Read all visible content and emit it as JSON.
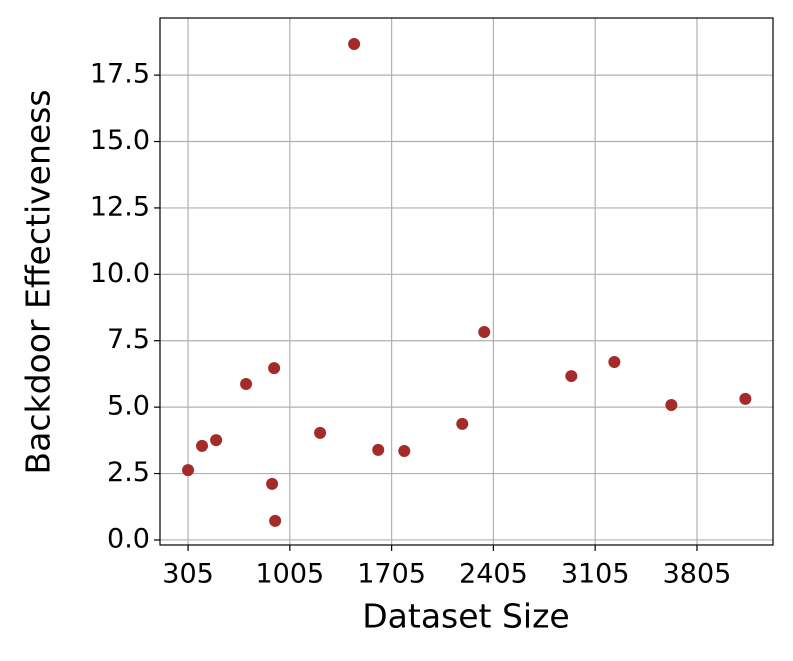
{
  "chart_data": {
    "type": "scatter",
    "x_label": "Dataset Size",
    "y_label": "Backdoor Effectiveness",
    "x": [
      305,
      401,
      498,
      704,
      897,
      883,
      904,
      1213,
      1447,
      1613,
      1792,
      2191,
      2342,
      2941,
      3237,
      3629,
      4138
    ],
    "values": [
      2.63,
      3.54,
      3.76,
      5.87,
      6.47,
      2.11,
      0.72,
      4.03,
      18.67,
      3.39,
      3.35,
      4.37,
      7.83,
      6.17,
      6.7,
      5.08,
      5.31
    ],
    "color": "#a52a2a",
    "xlim": [
      112,
      4328
    ],
    "xticks": [
      305,
      1005,
      1705,
      2405,
      3105,
      3805
    ],
    "ylim": [
      -0.19,
      19.65
    ],
    "yticks": [
      {
        "value": 0,
        "label": "0.0"
      },
      2.5,
      {
        "value": 5,
        "label": "5.0"
      },
      7.5,
      {
        "value": 10,
        "label": "10.0"
      },
      12.5,
      {
        "value": 15,
        "label": "15.0"
      },
      17.5
    ],
    "grid": true
  }
}
